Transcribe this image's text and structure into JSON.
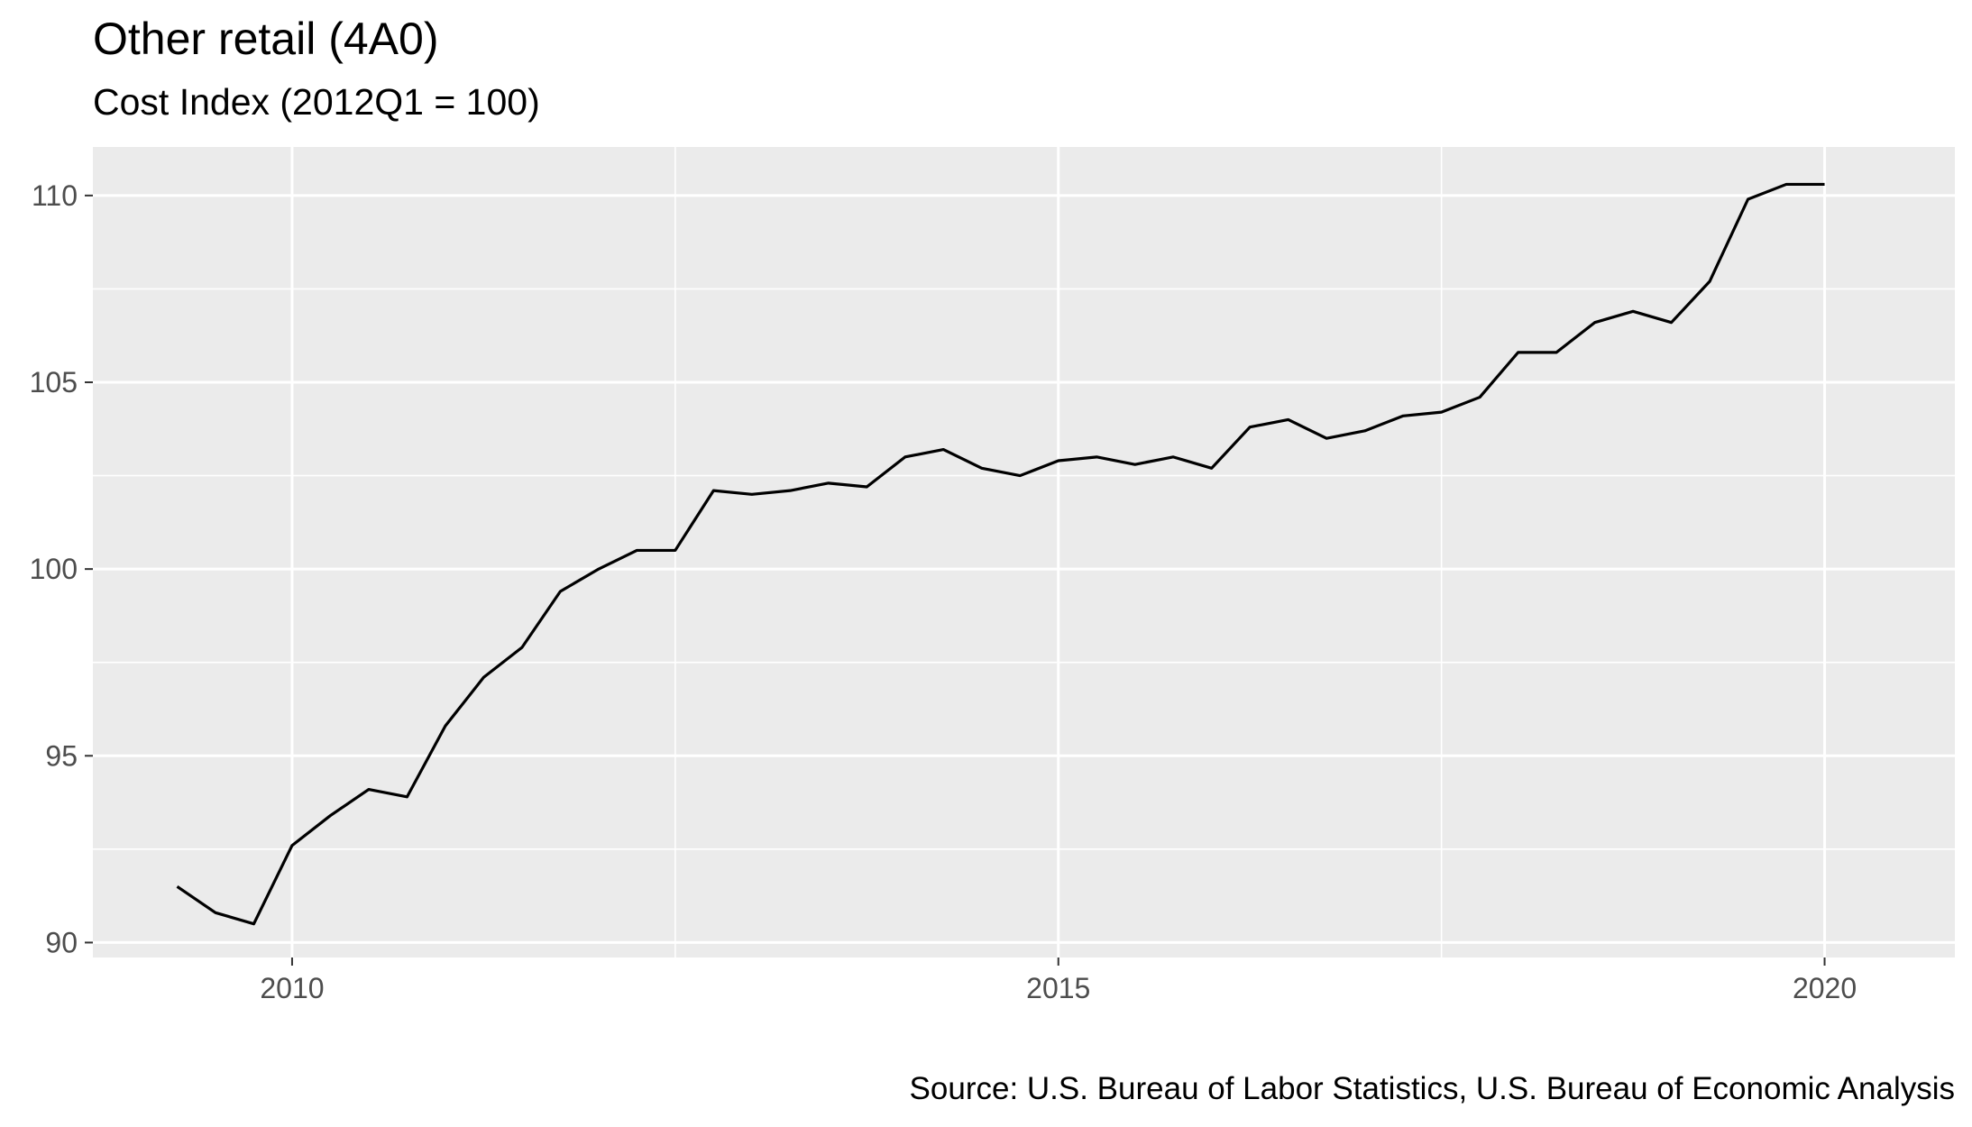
{
  "chart_data": {
    "type": "line",
    "title": "Other retail (4A0)",
    "subtitle": "Cost Index (2012Q1 = 100)",
    "caption": "Source: U.S. Bureau of Labor Statistics, U.S. Bureau of Economic Analysis",
    "xlabel": "",
    "ylabel": "",
    "xlim": [
      2008.7,
      2020.85
    ],
    "ylim": [
      89.6,
      111.3
    ],
    "x_ticks": [
      {
        "value": 2010,
        "label": "2010"
      },
      {
        "value": 2015,
        "label": "2015"
      },
      {
        "value": 2020,
        "label": "2020"
      }
    ],
    "y_ticks": [
      {
        "value": 90,
        "label": "90"
      },
      {
        "value": 95,
        "label": "95"
      },
      {
        "value": 100,
        "label": "100"
      },
      {
        "value": 105,
        "label": "105"
      },
      {
        "value": 110,
        "label": "110"
      }
    ],
    "grid": true,
    "x": [
      2009.25,
      2009.5,
      2009.75,
      2010.0,
      2010.25,
      2010.5,
      2010.75,
      2011.0,
      2011.25,
      2011.5,
      2011.75,
      2012.0,
      2012.25,
      2012.5,
      2012.75,
      2013.0,
      2013.25,
      2013.5,
      2013.75,
      2014.0,
      2014.25,
      2014.5,
      2014.75,
      2015.0,
      2015.25,
      2015.5,
      2015.75,
      2016.0,
      2016.25,
      2016.5,
      2016.75,
      2017.0,
      2017.25,
      2017.5,
      2017.75,
      2018.0,
      2018.25,
      2018.5,
      2018.75,
      2019.0,
      2019.25,
      2019.5,
      2019.75,
      2020.0
    ],
    "values": [
      91.5,
      90.8,
      90.5,
      92.6,
      93.4,
      94.1,
      93.9,
      95.8,
      97.1,
      97.9,
      99.4,
      100.0,
      100.5,
      100.5,
      102.1,
      102.0,
      102.1,
      102.3,
      102.2,
      103.0,
      103.2,
      102.7,
      102.5,
      102.9,
      103.0,
      102.8,
      103.0,
      102.7,
      103.8,
      104.0,
      103.5,
      103.7,
      104.1,
      104.2,
      104.6,
      105.8,
      105.8,
      106.6,
      106.9,
      106.6,
      107.7,
      109.9,
      110.3,
      110.3
    ],
    "line_color": "#000000",
    "panel_background": "#ebebeb",
    "grid_color": "#ffffff"
  }
}
